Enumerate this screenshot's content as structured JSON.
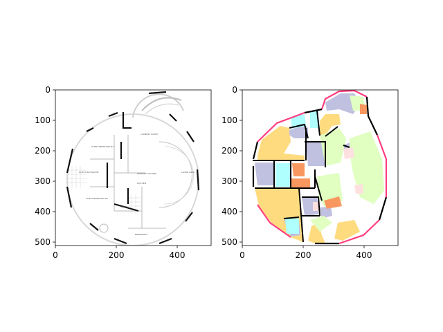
{
  "figure": {
    "background": "#ffffff",
    "panels": [
      {
        "name": "floorplan-image",
        "xticks": [
          "0",
          "200",
          "400"
        ],
        "yticks": [
          "0",
          "100",
          "200",
          "300",
          "400",
          "500"
        ],
        "room_labels": [
          "LAUNDRY ROOM",
          "GUEST BEDROOM #3",
          "GUEST BATHROOM",
          "SUPPORT COLUMN",
          "KITCHEN",
          "LIVING AREA",
          "GUEST BEDROOM #1",
          "WASH",
          "BREEZEWAY"
        ]
      },
      {
        "name": "segmentation-mask",
        "xticks": [
          "0",
          "200",
          "400"
        ],
        "yticks": [
          "0",
          "100",
          "200",
          "300",
          "400",
          "500"
        ],
        "legend_colors": {
          "wall": "#000000",
          "outline": "#ff3d7f",
          "bedroom": "#ffdb80",
          "bathroom": "#c0c0e0",
          "living": "#e0ffc0",
          "kitchen": "#f89860",
          "closet": "#b0ffff",
          "hall": "#ffe0e0"
        }
      }
    ]
  }
}
